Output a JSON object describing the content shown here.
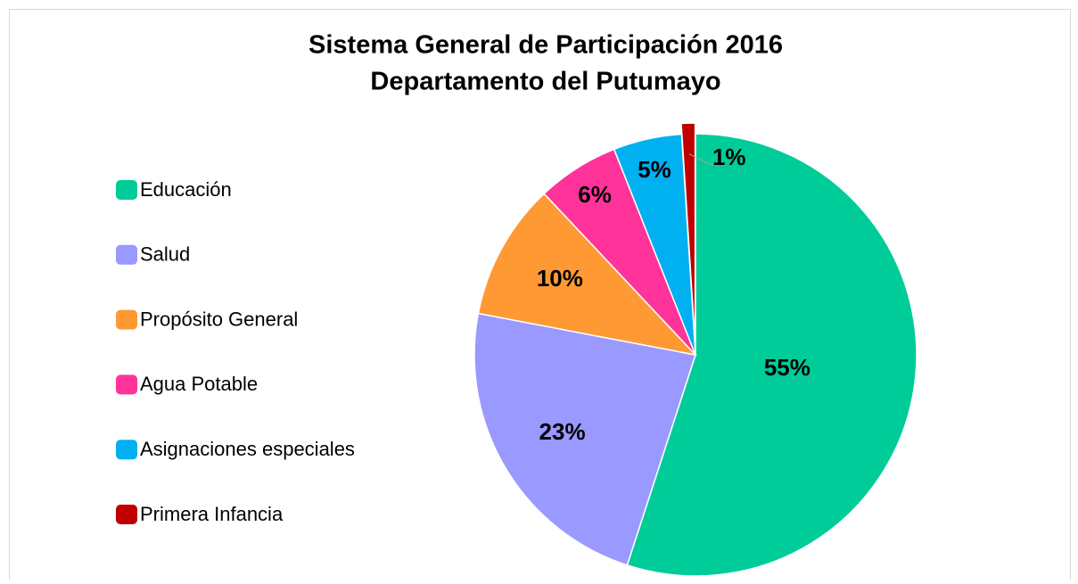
{
  "chart_data": {
    "type": "pie",
    "title": "Sistema General de Participación 2016",
    "subtitle": "Departamento del Putumayo",
    "categories": [
      "Educación",
      "Salud",
      "Propósito General",
      "Agua Potable",
      "Asignaciones especiales",
      "Primera Infancia"
    ],
    "values": [
      55,
      23,
      10,
      6,
      5,
      1
    ],
    "value_labels": [
      "55%",
      "23%",
      "10%",
      "6%",
      "5%",
      "1%"
    ],
    "colors": [
      "#00cc99",
      "#9999ff",
      "#ff9933",
      "#ff3399",
      "#00b0f0",
      "#c00000"
    ],
    "legend": "left"
  }
}
